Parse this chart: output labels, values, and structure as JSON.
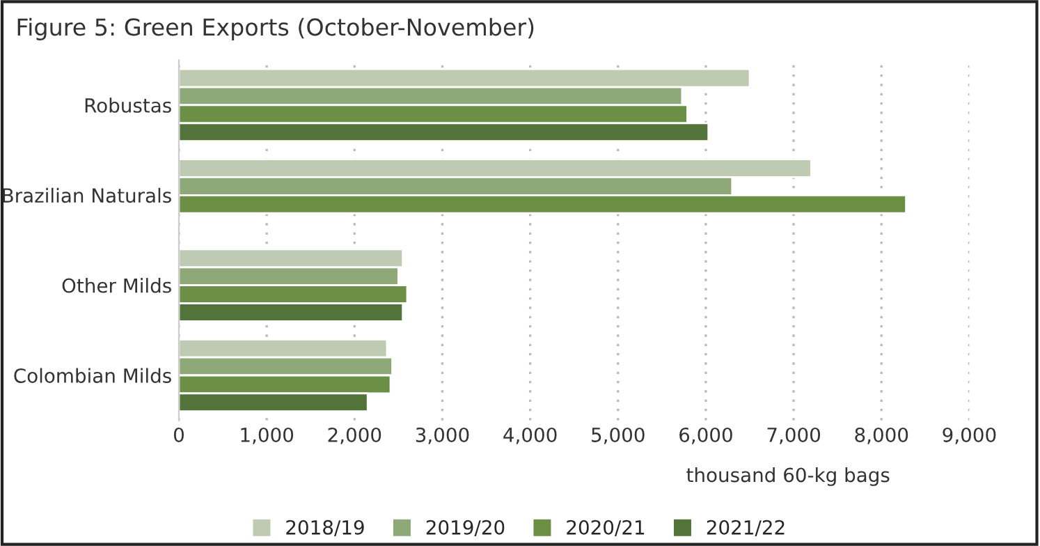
{
  "chart_data": {
    "type": "bar",
    "orientation": "horizontal",
    "title": "Figure 5: Green Exports (October-November)",
    "xlabel": "thousand 60-kg bags",
    "categories": [
      "Robustas",
      "Brazilian Naturals",
      "Other Milds",
      "Colombian Milds"
    ],
    "series": [
      {
        "name": "2018/19",
        "color": "#bfcab3",
        "values": [
          6500,
          7200,
          2550,
          2370
        ]
      },
      {
        "name": "2019/20",
        "color": "#8fa878",
        "values": [
          5730,
          6300,
          2500,
          2430
        ]
      },
      {
        "name": "2020/21",
        "color": "#6a8f45",
        "values": [
          5790,
          8280,
          2600,
          2410
        ]
      },
      {
        "name": "2021/22",
        "color": "#52733a",
        "values": [
          6030,
          null,
          2550,
          2150
        ]
      }
    ],
    "xlim": [
      0,
      9000
    ],
    "xticks": [
      {
        "value": 0,
        "label": "0"
      },
      {
        "value": 1000,
        "label": "1,000"
      },
      {
        "value": 2000,
        "label": "2,000"
      },
      {
        "value": 3000,
        "label": "3,000"
      },
      {
        "value": 4000,
        "label": "4,000"
      },
      {
        "value": 5000,
        "label": "5,000"
      },
      {
        "value": 6000,
        "label": "6,000"
      },
      {
        "value": 7000,
        "label": "7,000"
      },
      {
        "value": 8000,
        "label": "8,000"
      },
      {
        "value": 9000,
        "label": "9,000"
      }
    ],
    "grid": "x",
    "legend": "bottom"
  }
}
